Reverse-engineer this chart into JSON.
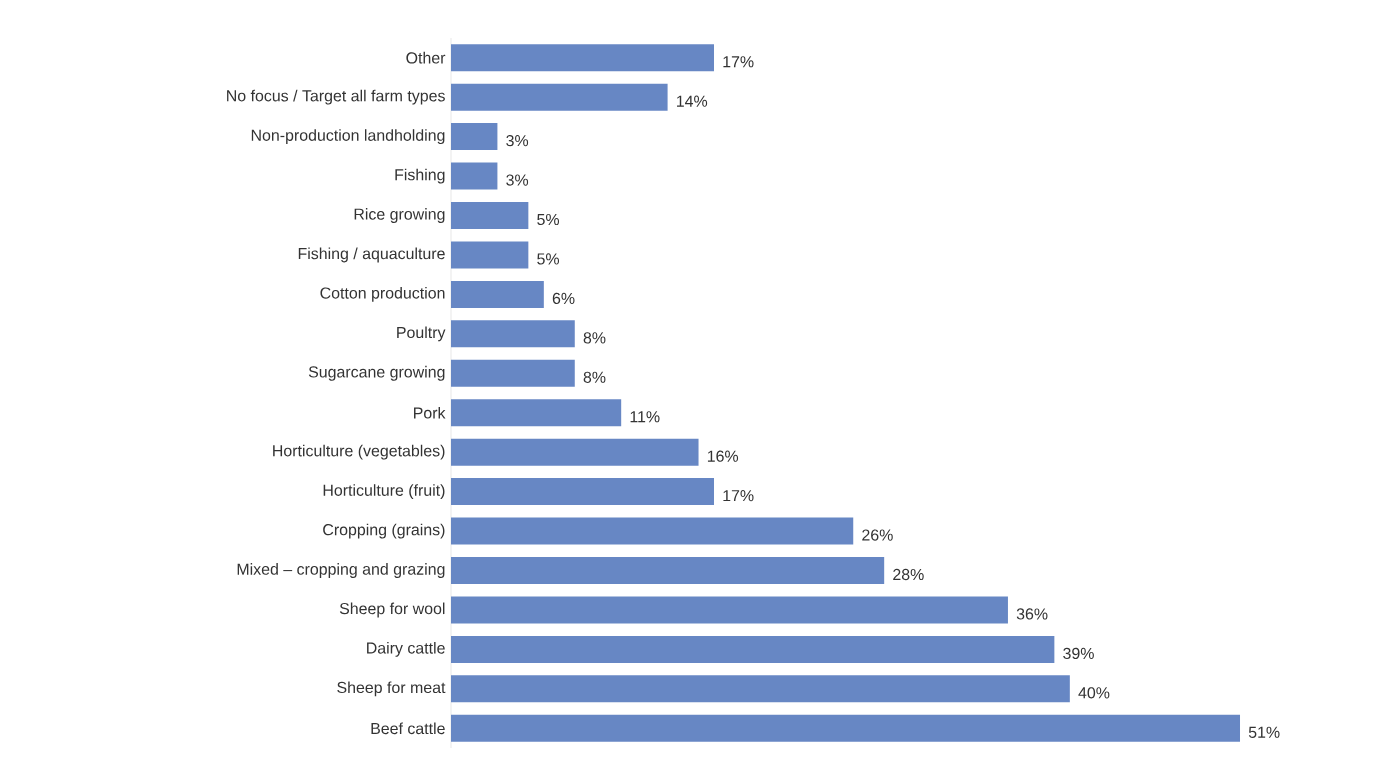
{
  "chart_data": {
    "type": "bar",
    "orientation": "horizontal",
    "categories": [
      "Other",
      "No focus / Target all farm types",
      "Non-production landholding",
      "Fishing",
      "Rice growing",
      "Fishing / aquaculture",
      "Cotton production",
      "Poultry",
      "Sugarcane growing",
      "Pork",
      "Horticulture (vegetables)",
      "Horticulture (fruit)",
      "Cropping (grains)",
      "Mixed – cropping and grazing",
      "Sheep for wool",
      "Dairy cattle",
      "Sheep for meat",
      "Beef cattle"
    ],
    "values": [
      17,
      14,
      3,
      3,
      5,
      5,
      6,
      8,
      8,
      11,
      16,
      17,
      26,
      28,
      36,
      39,
      40,
      51
    ],
    "value_labels": [
      "17%",
      "14%",
      "3%",
      "3%",
      "5%",
      "5%",
      "6%",
      "8%",
      "8%",
      "11%",
      "16%",
      "17%",
      "26%",
      "28%",
      "36%",
      "39%",
      "40%",
      "51%"
    ],
    "color": "#6787c4",
    "xlim": [
      0,
      51
    ],
    "tick_labels": "y"
  }
}
